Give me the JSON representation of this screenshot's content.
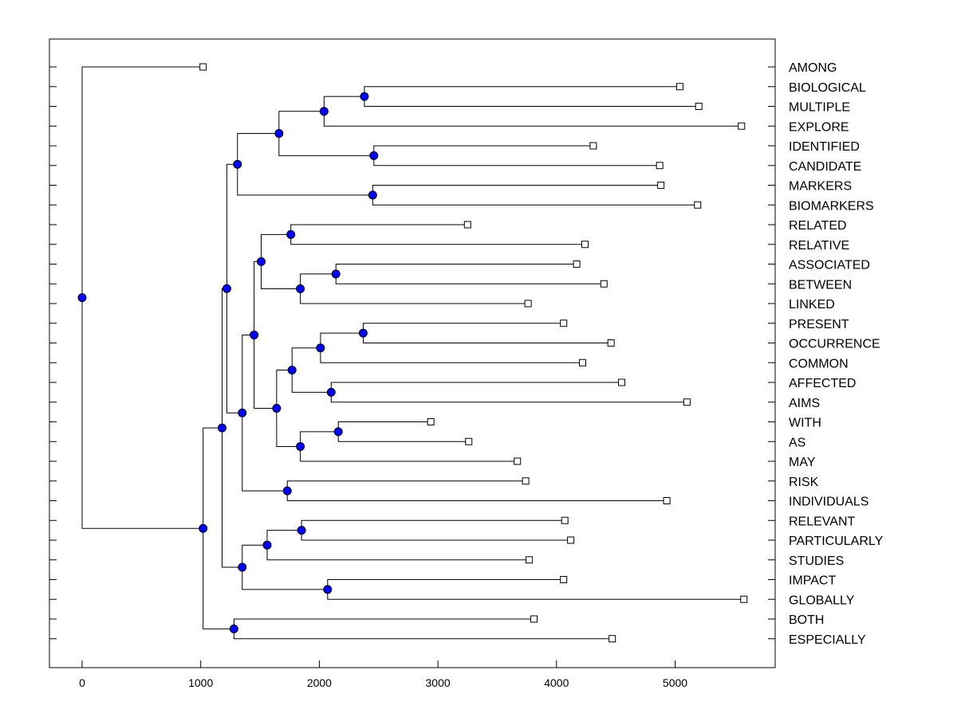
{
  "chart_data": {
    "type": "dendrogram",
    "title": "",
    "xlabel": "",
    "ylabel": "",
    "xlim": [
      -280,
      5900
    ],
    "x_ticks": [
      0,
      1000,
      2000,
      3000,
      4000,
      5000
    ],
    "x_tick_labels": [
      "0",
      "1000",
      "2000",
      "3000",
      "4000",
      "5000"
    ],
    "leaves": [
      {
        "label": "AMONG",
        "value": 1020
      },
      {
        "label": "BIOLOGICAL",
        "value": 5040
      },
      {
        "label": "MULTIPLE",
        "value": 5200
      },
      {
        "label": "EXPLORE",
        "value": 5560
      },
      {
        "label": "IDENTIFIED",
        "value": 4310
      },
      {
        "label": "CANDIDATE",
        "value": 4870
      },
      {
        "label": "MARKERS",
        "value": 4880
      },
      {
        "label": "BIOMARKERS",
        "value": 5190
      },
      {
        "label": "RELATED",
        "value": 3250
      },
      {
        "label": "RELATIVE",
        "value": 4240
      },
      {
        "label": "ASSOCIATED",
        "value": 4170
      },
      {
        "label": "BETWEEN",
        "value": 4400
      },
      {
        "label": "LINKED",
        "value": 3760
      },
      {
        "label": "PRESENT",
        "value": 4060
      },
      {
        "label": "OCCURRENCE",
        "value": 4460
      },
      {
        "label": "COMMON",
        "value": 4220
      },
      {
        "label": "AFFECTED",
        "value": 4550
      },
      {
        "label": "AIMS",
        "value": 5100
      },
      {
        "label": "WITH",
        "value": 2940
      },
      {
        "label": "AS",
        "value": 3260
      },
      {
        "label": "MAY",
        "value": 3670
      },
      {
        "label": "RISK",
        "value": 3740
      },
      {
        "label": "INDIVIDUALS",
        "value": 4930
      },
      {
        "label": "RELEVANT",
        "value": 4070
      },
      {
        "label": "PARTICULARLY",
        "value": 4120
      },
      {
        "label": "STUDIES",
        "value": 3770
      },
      {
        "label": "IMPACT",
        "value": 4060
      },
      {
        "label": "GLOBALLY",
        "value": 5580
      },
      {
        "label": "BOTH",
        "value": 3810
      },
      {
        "label": "ESPECIALLY",
        "value": 4470
      }
    ],
    "merges": [
      {
        "id": "n1",
        "value": 2380,
        "children": [
          "BIOLOGICAL",
          "MULTIPLE"
        ]
      },
      {
        "id": "n2",
        "value": 2040,
        "children": [
          "n1",
          "EXPLORE"
        ]
      },
      {
        "id": "n3",
        "value": 2460,
        "children": [
          "IDENTIFIED",
          "CANDIDATE"
        ]
      },
      {
        "id": "n4",
        "value": 1660,
        "children": [
          "n2",
          "n3"
        ]
      },
      {
        "id": "n5",
        "value": 2450,
        "children": [
          "MARKERS",
          "BIOMARKERS"
        ]
      },
      {
        "id": "n6",
        "value": 1310,
        "children": [
          "n4",
          "n5"
        ]
      },
      {
        "id": "n7",
        "value": 1760,
        "children": [
          "RELATED",
          "RELATIVE"
        ]
      },
      {
        "id": "n8",
        "value": 2140,
        "children": [
          "ASSOCIATED",
          "BETWEEN"
        ]
      },
      {
        "id": "n9",
        "value": 1840,
        "children": [
          "n8",
          "LINKED"
        ]
      },
      {
        "id": "n10",
        "value": 1510,
        "children": [
          "n7",
          "n9"
        ]
      },
      {
        "id": "n11",
        "value": 2370,
        "children": [
          "PRESENT",
          "OCCURRENCE"
        ]
      },
      {
        "id": "n12",
        "value": 2010,
        "children": [
          "n11",
          "COMMON"
        ]
      },
      {
        "id": "n13",
        "value": 2100,
        "children": [
          "AFFECTED",
          "AIMS"
        ]
      },
      {
        "id": "n14",
        "value": 1770,
        "children": [
          "n12",
          "n13"
        ]
      },
      {
        "id": "n15",
        "value": 2160,
        "children": [
          "WITH",
          "AS"
        ]
      },
      {
        "id": "n16",
        "value": 1840,
        "children": [
          "n15",
          "MAY"
        ]
      },
      {
        "id": "n17",
        "value": 1640,
        "children": [
          "n14",
          "n16"
        ]
      },
      {
        "id": "n18",
        "value": 1450,
        "children": [
          "n10",
          "n17"
        ]
      },
      {
        "id": "n19",
        "value": 1730,
        "children": [
          "RISK",
          "INDIVIDUALS"
        ]
      },
      {
        "id": "n20",
        "value": 1350,
        "children": [
          "n18",
          "n19"
        ]
      },
      {
        "id": "n21",
        "value": 1220,
        "children": [
          "n6",
          "n20"
        ]
      },
      {
        "id": "n22",
        "value": 1850,
        "children": [
          "RELEVANT",
          "PARTICULARLY"
        ]
      },
      {
        "id": "n23",
        "value": 1560,
        "children": [
          "n22",
          "STUDIES"
        ]
      },
      {
        "id": "n24",
        "value": 2070,
        "children": [
          "IMPACT",
          "GLOBALLY"
        ]
      },
      {
        "id": "n25",
        "value": 1350,
        "children": [
          "n23",
          "n24"
        ]
      },
      {
        "id": "n26",
        "value": 1180,
        "children": [
          "n21",
          "n25"
        ]
      },
      {
        "id": "n27",
        "value": 1280,
        "children": [
          "BOTH",
          "ESPECIALLY"
        ]
      },
      {
        "id": "n28",
        "value": 1020,
        "children": [
          "n26",
          "n27"
        ]
      },
      {
        "id": "n29",
        "value": 0,
        "children": [
          "AMONG",
          "n28"
        ]
      }
    ],
    "colors": {
      "node_fill": "#0000ff",
      "line": "#000000",
      "leaf_fill": "#ffffff"
    }
  }
}
